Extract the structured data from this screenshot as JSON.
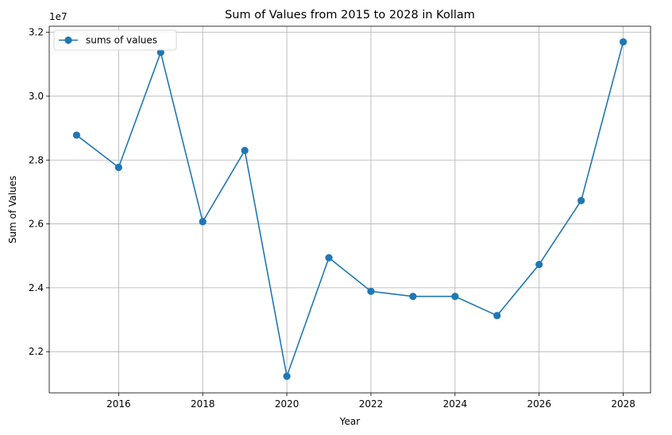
{
  "chart_data": {
    "type": "line",
    "title": "Sum of Values from 2015 to 2028 in Kollam",
    "xlabel": "Year",
    "ylabel": "Sum of Values",
    "y_offset_text": "1e7",
    "x": [
      2015,
      2016,
      2017,
      2018,
      2019,
      2020,
      2021,
      2022,
      2023,
      2024,
      2025,
      2026,
      2027,
      2028
    ],
    "series": [
      {
        "name": "sums of values",
        "color": "#1f77b4",
        "marker": "circle",
        "values": [
          28780000,
          27770000,
          31370000,
          26070000,
          28300000,
          21230000,
          24940000,
          23890000,
          23730000,
          23730000,
          23130000,
          24730000,
          26730000,
          31700000
        ]
      }
    ],
    "xlim": [
      2014.35,
      2028.65
    ],
    "ylim": [
      20710000,
      32190000
    ],
    "x_ticks": [
      2016,
      2018,
      2020,
      2022,
      2024,
      2026,
      2028
    ],
    "x_tick_labels": [
      "2016",
      "2018",
      "2020",
      "2022",
      "2024",
      "2026",
      "2028"
    ],
    "y_ticks": [
      22000000,
      24000000,
      26000000,
      28000000,
      30000000,
      32000000
    ],
    "y_tick_labels": [
      "2.2",
      "2.4",
      "2.6",
      "2.8",
      "3.0",
      "3.2"
    ],
    "grid": true,
    "legend_position": "top-left"
  }
}
